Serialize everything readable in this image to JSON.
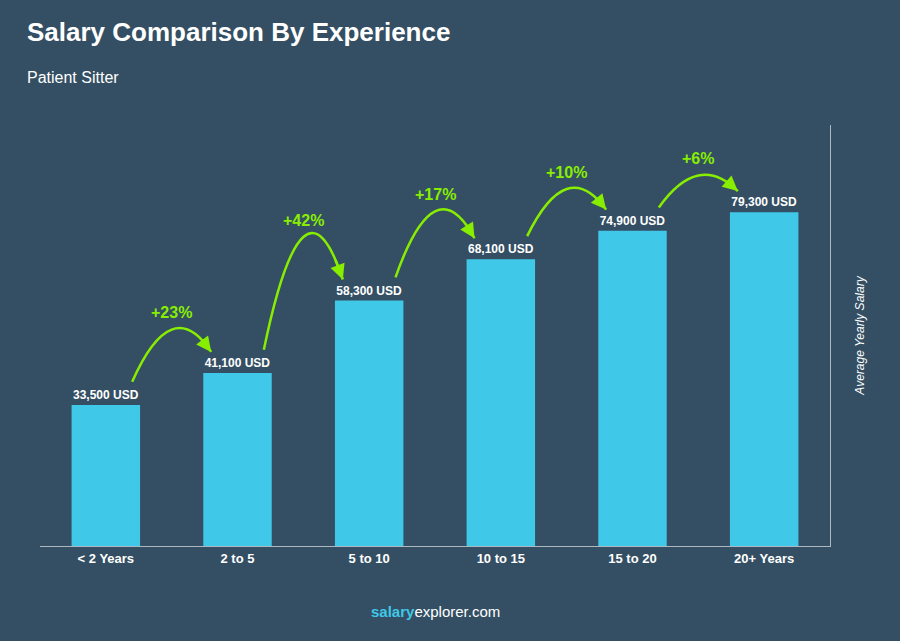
{
  "chart_data": {
    "type": "bar",
    "title": "Salary Comparison By Experience",
    "subtitle": "Patient Sitter",
    "categories": [
      "< 2 Years",
      "2 to 5",
      "5 to 10",
      "10 to 15",
      "15 to 20",
      "20+ Years"
    ],
    "values": [
      33500,
      41100,
      58300,
      68100,
      74900,
      79300
    ],
    "value_labels": [
      "33,500 USD",
      "41,100 USD",
      "58,300 USD",
      "68,100 USD",
      "74,900 USD",
      "79,300 USD"
    ],
    "data_labels": true,
    "color": "#40c8e8",
    "ylabel": "Average Yearly Salary",
    "annotations": [
      "+23%",
      "+42%",
      "+17%",
      "+10%",
      "+6%"
    ],
    "footer": [
      "salary",
      "explorer.com"
    ],
    "ylim": [
      0,
      100000
    ],
    "tick_labels": "x",
    "grid": false
  }
}
